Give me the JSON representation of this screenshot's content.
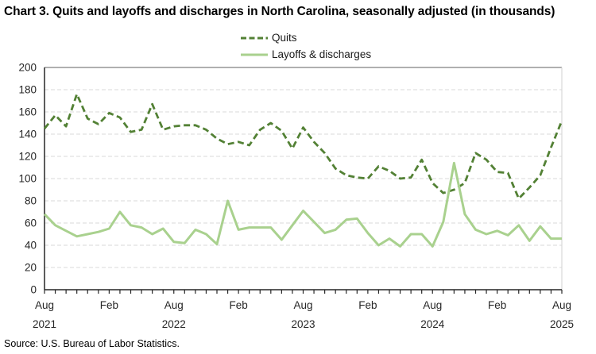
{
  "title": "Chart 3. Quits and layoffs and discharges in North Carolina, seasonally adjusted (in thousands)",
  "source": "Source: U.S. Bureau of Labor Statistics.",
  "legend": {
    "quits_label": "Quits",
    "layoffs_label": "Layoffs & discharges"
  },
  "colors": {
    "quits": "#538135",
    "layoffs": "#a9d18e",
    "grid": "#d9d9d9",
    "axis": "#262626",
    "top_border": "#808080",
    "right_border": "#d9d9d9",
    "tick_text": "#262626"
  },
  "chart_data": {
    "type": "line",
    "title": "Chart 3. Quits and layoffs and discharges in North Carolina, seasonally adjusted (in thousands)",
    "xlabel": "",
    "ylabel": "",
    "ylim": [
      0,
      200
    ],
    "ytick_step": 20,
    "grid": true,
    "legend_position": "top-center",
    "x": [
      "Aug 2021",
      "Sep 2021",
      "Oct 2021",
      "Nov 2021",
      "Dec 2021",
      "Jan 2022",
      "Feb 2022",
      "Mar 2022",
      "Apr 2022",
      "May 2022",
      "Jun 2022",
      "Jul 2022",
      "Aug 2022",
      "Sep 2022",
      "Oct 2022",
      "Nov 2022",
      "Dec 2022",
      "Jan 2023",
      "Feb 2023",
      "Mar 2023",
      "Apr 2023",
      "May 2023",
      "Jun 2023",
      "Jul 2023",
      "Aug 2023",
      "Sep 2023",
      "Oct 2023",
      "Nov 2023",
      "Dec 2023",
      "Jan 2024",
      "Feb 2024",
      "Mar 2024",
      "Apr 2024",
      "May 2024",
      "Jun 2024",
      "Jul 2024",
      "Aug 2024",
      "Sep 2024",
      "Oct 2024",
      "Nov 2024",
      "Dec 2024",
      "Jan 2025",
      "Feb 2025",
      "Mar 2025",
      "Apr 2025",
      "May 2025",
      "Jun 2025",
      "Jul 2025",
      "Aug 2025"
    ],
    "series": [
      {
        "name": "Quits",
        "style": "dashed",
        "values": [
          145,
          157,
          147,
          176,
          154,
          149,
          159,
          155,
          142,
          144,
          167,
          144,
          147,
          148,
          148,
          144,
          136,
          131,
          133,
          130,
          144,
          150,
          143,
          127,
          146,
          133,
          123,
          109,
          103,
          101,
          100,
          111,
          107,
          100,
          101,
          117,
          96,
          87,
          90,
          96,
          123,
          117,
          106,
          105,
          82,
          92,
          103,
          128,
          152
        ]
      },
      {
        "name": "Layoffs & discharges",
        "style": "solid",
        "values": [
          68,
          58,
          53,
          48,
          50,
          52,
          55,
          70,
          58,
          56,
          50,
          55,
          43,
          42,
          54,
          50,
          41,
          80,
          54,
          56,
          56,
          56,
          45,
          58,
          71,
          61,
          51,
          54,
          63,
          64,
          51,
          40,
          46,
          39,
          50,
          50,
          39,
          61,
          114,
          68,
          54,
          50,
          53,
          49,
          58,
          44,
          57,
          46,
          46
        ]
      }
    ],
    "x_ticks_labeled": [
      {
        "i": 0,
        "month": "Aug",
        "year": "2021"
      },
      {
        "i": 6,
        "month": "Feb",
        "year": ""
      },
      {
        "i": 12,
        "month": "Aug",
        "year": "2022"
      },
      {
        "i": 18,
        "month": "Feb",
        "year": ""
      },
      {
        "i": 24,
        "month": "Aug",
        "year": "2023"
      },
      {
        "i": 30,
        "month": "Feb",
        "year": ""
      },
      {
        "i": 36,
        "month": "Aug",
        "year": "2024"
      },
      {
        "i": 42,
        "month": "Feb",
        "year": ""
      },
      {
        "i": 48,
        "month": "Aug",
        "year": "2025"
      }
    ]
  }
}
